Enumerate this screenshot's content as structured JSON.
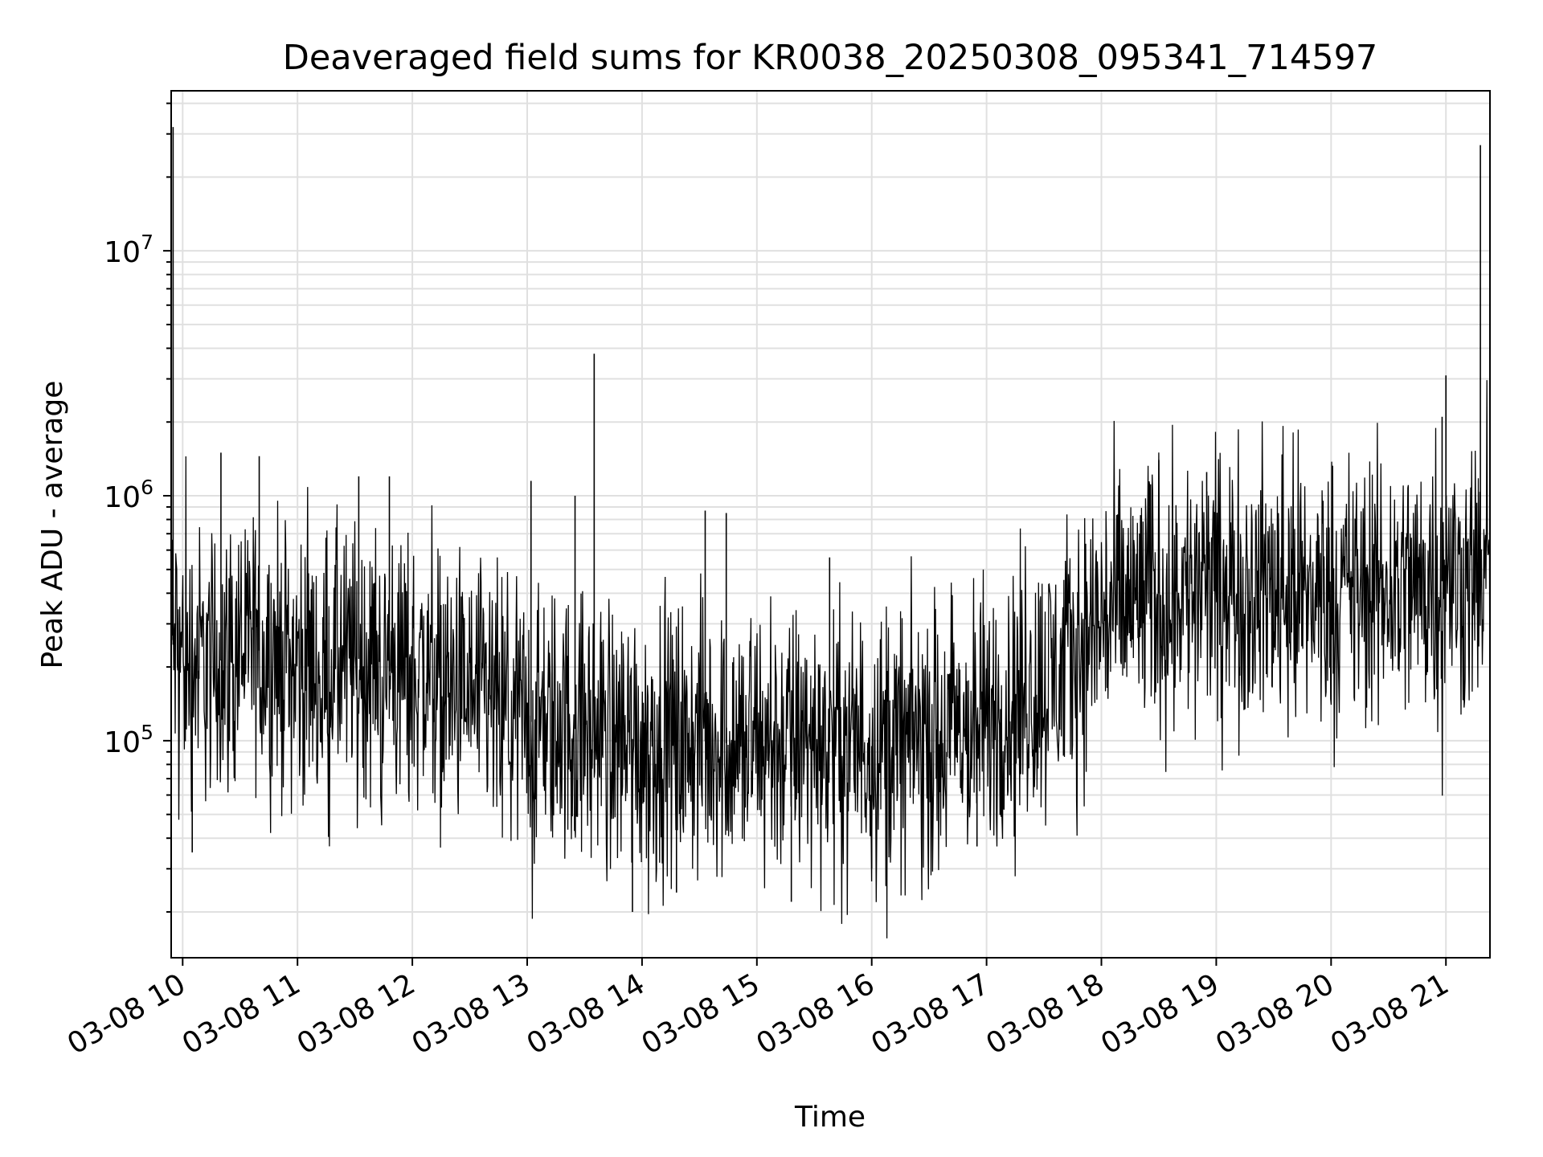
{
  "chart_data": {
    "type": "line",
    "title": "Deaveraged field sums for KR0038_20250308_095341_714597",
    "xlabel": "Time",
    "ylabel": "Peak ADU - average",
    "yscale": "log",
    "ylim": [
      13000,
      45000000
    ],
    "xlim": [
      "03-08 09:54",
      "03-08 21:23"
    ],
    "grid": true,
    "line_color": "#000000",
    "x_ticks": [
      "03-08 10",
      "03-08 11",
      "03-08 12",
      "03-08 13",
      "03-08 14",
      "03-08 15",
      "03-08 16",
      "03-08 17",
      "03-08 18",
      "03-08 19",
      "03-08 20",
      "03-08 21"
    ],
    "y_ticks": [
      {
        "base": "10",
        "exp": "5",
        "value": 100000
      },
      {
        "base": "10",
        "exp": "6",
        "value": 1000000
      },
      {
        "base": "10",
        "exp": "7",
        "value": 10000000
      }
    ],
    "series": [
      {
        "x": [
          "03-08 09:54",
          "03-08 10:00",
          "03-08 10:15",
          "03-08 10:30",
          "03-08 10:45",
          "03-08 11:00",
          "03-08 11:15",
          "03-08 11:30",
          "03-08 11:45",
          "03-08 12:00",
          "03-08 12:15",
          "03-08 12:30",
          "03-08 12:45",
          "03-08 13:00",
          "03-08 13:15",
          "03-08 13:30",
          "03-08 13:45",
          "03-08 14:00",
          "03-08 14:30",
          "03-08 15:00",
          "03-08 15:30",
          "03-08 16:00",
          "03-08 16:30",
          "03-08 17:00",
          "03-08 17:30",
          "03-08 17:45",
          "03-08 18:00",
          "03-08 18:30",
          "03-08 19:00",
          "03-08 19:30",
          "03-08 20:00",
          "03-08 20:30",
          "03-08 21:00",
          "03-08 21:23"
        ],
        "values": [
          250000,
          230000,
          200000,
          240000,
          230000,
          210000,
          200000,
          220000,
          190000,
          200000,
          170000,
          150000,
          130000,
          120000,
          115000,
          110000,
          105000,
          100000,
          100000,
          95000,
          100000,
          95000,
          100000,
          120000,
          170000,
          220000,
          320000,
          400000,
          420000,
          420000,
          400000,
          420000,
          450000,
          500000
        ]
      }
    ],
    "spikes": [
      {
        "x": "03-08 09:55",
        "value": 32000000
      },
      {
        "x": "03-08 10:20",
        "value": 1500000
      },
      {
        "x": "03-08 10:40",
        "value": 1450000
      },
      {
        "x": "03-08 11:32",
        "value": 1200000
      },
      {
        "x": "03-08 11:48",
        "value": 1200000
      },
      {
        "x": "03-08 13:02",
        "value": 1150000
      },
      {
        "x": "03-08 13:25",
        "value": 1000000
      },
      {
        "x": "03-08 13:35",
        "value": 3800000
      },
      {
        "x": "03-08 14:33",
        "value": 870000
      },
      {
        "x": "03-08 14:44",
        "value": 850000
      },
      {
        "x": "03-08 15:38",
        "value": 560000
      },
      {
        "x": "03-08 18:30",
        "value": 1400000
      },
      {
        "x": "03-08 18:55",
        "value": 1250000
      },
      {
        "x": "03-08 20:58",
        "value": 2100000
      },
      {
        "x": "03-08 21:00",
        "value": 3100000
      },
      {
        "x": "03-08 21:18",
        "value": 27000000
      }
    ],
    "dips": [
      {
        "x": "03-08 10:05",
        "value": 35000
      },
      {
        "x": "03-08 13:55",
        "value": 20000
      },
      {
        "x": "03-08 14:18",
        "value": 24000
      },
      {
        "x": "03-08 15:18",
        "value": 22000
      },
      {
        "x": "03-08 16:00",
        "value": 30000
      },
      {
        "x": "03-08 16:55",
        "value": 37000
      }
    ]
  }
}
